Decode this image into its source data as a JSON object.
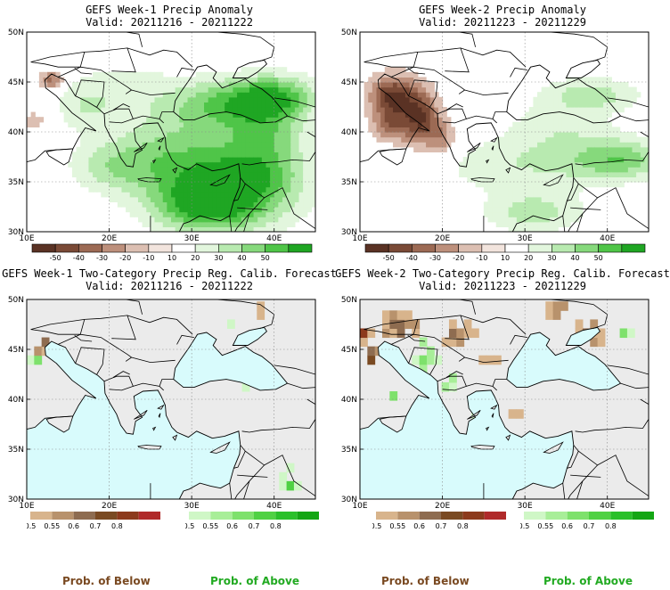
{
  "panels": [
    {
      "title": "GEFS Week-1 Precip Anomaly",
      "valid": "Valid: 20211216 - 20211222",
      "kind": "anom",
      "week": 1
    },
    {
      "title": "GEFS Week-2 Precip Anomaly",
      "valid": "Valid: 20211223 - 20211229",
      "kind": "anom",
      "week": 2
    },
    {
      "title": "GEFS Week-1 Two-Category Precip Reg. Calib. Forecast",
      "valid": "Valid: 20211216 - 20211222",
      "kind": "prob",
      "week": 1
    },
    {
      "title": "GEFS Week-2 Two-Category Precip Reg. Calib. Forecast",
      "valid": "Valid: 20211223 - 20211229",
      "kind": "prob",
      "week": 2
    }
  ],
  "axes": {
    "lat_labels": [
      "50N",
      "45N",
      "40N",
      "35N",
      "30N"
    ],
    "lon_labels": [
      "10E",
      "20E",
      "30E",
      "40E"
    ]
  },
  "anomaly_colorbar": {
    "labels": [
      "-50",
      "-40",
      "-30",
      "-20",
      "-10",
      "10",
      "20",
      "30",
      "40",
      "50"
    ],
    "colors": [
      "#5a3224",
      "#7a4a36",
      "#9c6a54",
      "#bd907c",
      "#dcbfb2",
      "#f2e4dd",
      "#ffffff",
      "#e2f6dd",
      "#b8eab0",
      "#86d97c",
      "#4fc548",
      "#1fa623"
    ]
  },
  "below_colorbar": {
    "labels": [
      "0.5",
      "0.55",
      "0.6",
      "0.7",
      "0.8"
    ],
    "colors": [
      "#d8b48c",
      "#b8926c",
      "#8e6c50",
      "#7a4a22",
      "#8c3a1c",
      "#b02a2a"
    ]
  },
  "above_colorbar": {
    "labels": [
      "0.5",
      "0.55",
      "0.6",
      "0.7",
      "0.8"
    ],
    "colors": [
      "#cff7c6",
      "#a8ee98",
      "#7ee16c",
      "#4fd143",
      "#2ac02a",
      "#14a614"
    ]
  },
  "footer": {
    "below_label": "Prob. of Below",
    "above_label": "Prob. of Above",
    "below_color": "#7a4a22",
    "above_color": "#22aa22"
  },
  "map_colors": {
    "sea": "#d8fbfc",
    "land_gray": "#ebebeb",
    "coast": "#000000"
  }
}
